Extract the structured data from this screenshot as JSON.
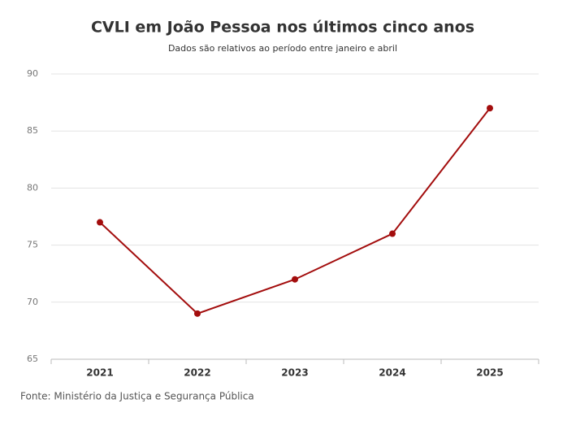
{
  "chart_data": {
    "type": "line",
    "title": "CVLI em João Pessoa nos últimos cinco anos",
    "subtitle": "Dados são relativos ao período entre janeiro e abril",
    "source": "Fonte: Ministério da Justiça e Segurança Pública",
    "categories": [
      "2021",
      "2022",
      "2023",
      "2024",
      "2025"
    ],
    "series": [
      {
        "name": "CVLI",
        "color": "#a30d0d",
        "values": [
          77,
          69,
          72,
          76,
          87
        ]
      }
    ],
    "ylim": [
      65,
      90
    ],
    "yticks": [
      65,
      70,
      75,
      80,
      85,
      90
    ],
    "grid": true
  }
}
